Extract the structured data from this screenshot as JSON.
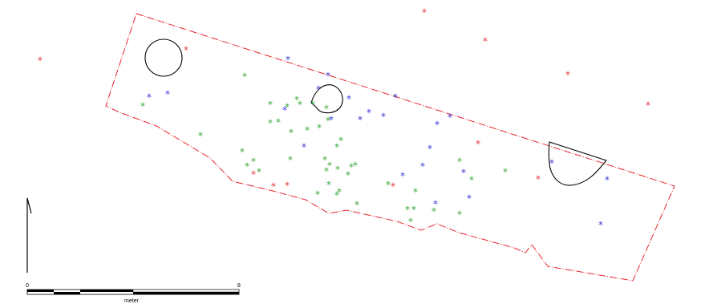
{
  "map": {
    "colors": {
      "boundary": "#e8242b",
      "feature": "#000000",
      "red": "#e8353a",
      "green": "#3aa83a",
      "blue": "#3a3ad8"
    },
    "marker_symbol": "*",
    "north_arrow": "north-arrow",
    "scale_bar": {
      "start_label": "0",
      "end_label": "8",
      "unit_label": "meter"
    }
  }
}
